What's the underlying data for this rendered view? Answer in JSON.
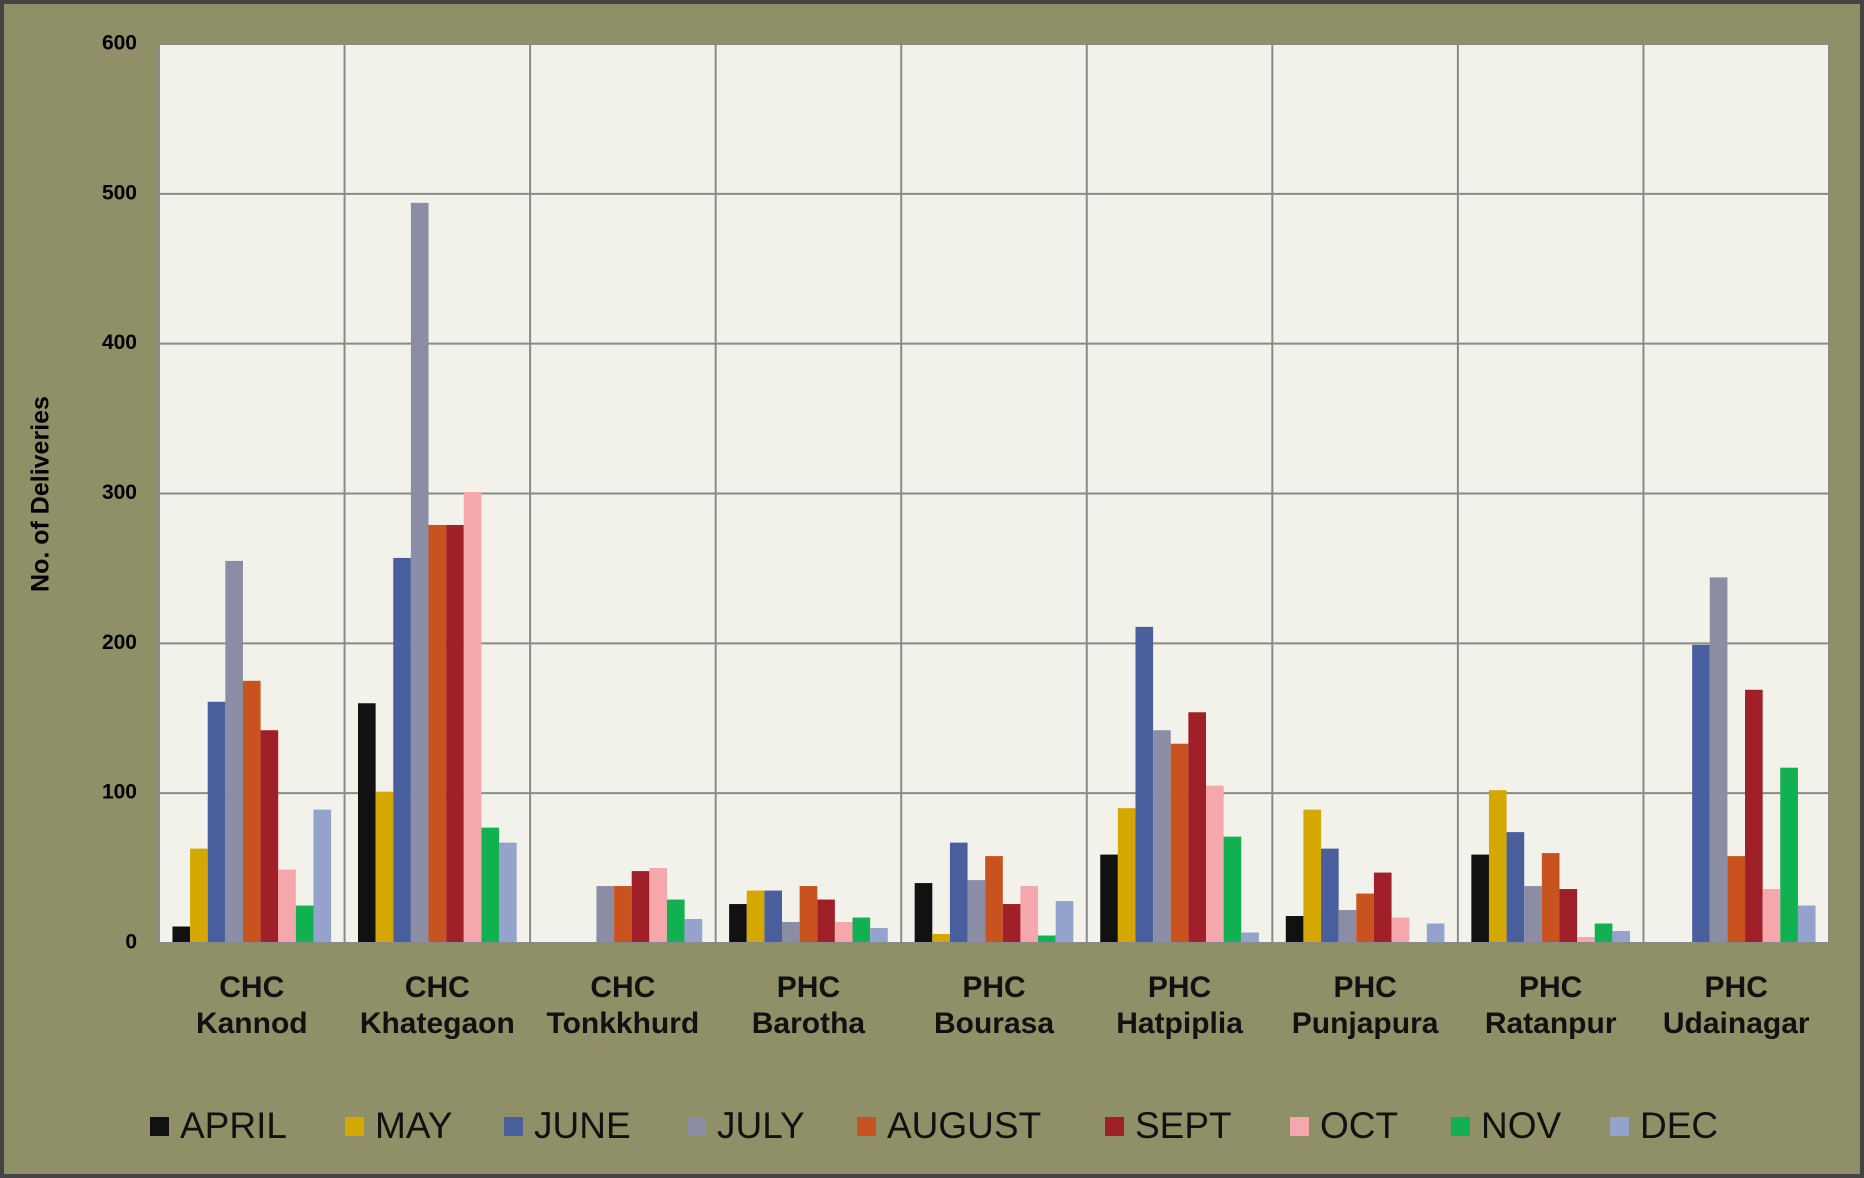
{
  "chart_data": {
    "type": "bar",
    "y_label": "No. of Deliveries",
    "categories": [
      "CHC\nKannod",
      "CHC\nKhategaon",
      "CHC\nTonkkhurd",
      "PHC\nBarotha",
      "PHC\nBourasa",
      "PHC\nHatpiplia",
      "PHC\nPunjapura",
      "PHC\nRatanpur",
      "PHC\nUdainagar"
    ],
    "series": [
      {
        "name": "APRIL",
        "color": "#111111",
        "values": [
          11,
          160,
          0,
          26,
          40,
          59,
          18,
          59,
          0
        ]
      },
      {
        "name": "MAY",
        "color": "#d4a800",
        "values": [
          63,
          101,
          0,
          35,
          6,
          90,
          89,
          102,
          0
        ]
      },
      {
        "name": "JUNE",
        "color": "#4a5f9e",
        "values": [
          161,
          257,
          0,
          35,
          67,
          211,
          63,
          74,
          199
        ]
      },
      {
        "name": "JULY",
        "color": "#8a8da3",
        "values": [
          255,
          494,
          38,
          14,
          42,
          142,
          22,
          38,
          244
        ]
      },
      {
        "name": "AUGUST",
        "color": "#c9531e",
        "values": [
          175,
          279,
          38,
          38,
          58,
          133,
          33,
          60,
          58
        ]
      },
      {
        "name": "SEPT",
        "color": "#a0202a",
        "values": [
          142,
          279,
          48,
          29,
          26,
          154,
          47,
          36,
          169
        ]
      },
      {
        "name": "OCT",
        "color": "#f4a8ac",
        "values": [
          49,
          301,
          50,
          14,
          38,
          105,
          17,
          4,
          36
        ]
      },
      {
        "name": "NOV",
        "color": "#11b050",
        "values": [
          25,
          77,
          29,
          17,
          5,
          71,
          0,
          13,
          117
        ]
      },
      {
        "name": "DEC",
        "color": "#94a3cc",
        "values": [
          89,
          67,
          16,
          10,
          28,
          7,
          13,
          8,
          25
        ]
      }
    ],
    "ylim": [
      0,
      600
    ],
    "yticks": [
      0,
      100,
      200,
      300,
      400,
      500,
      600
    ],
    "grid": true
  }
}
